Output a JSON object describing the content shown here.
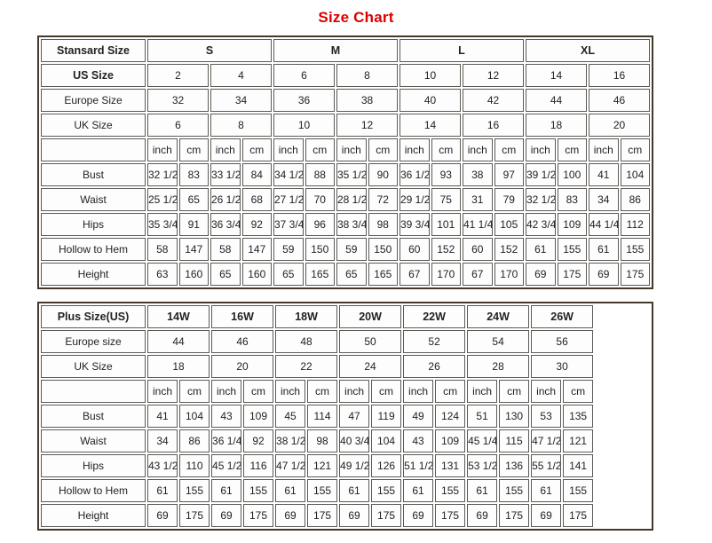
{
  "page_title": "Size Chart",
  "colors": {
    "title_red": "#dd0000",
    "outer_border": "#44382a",
    "grid_line": "#5d5a55",
    "text": "#222222"
  },
  "standard_table": {
    "corner_label": "Stansard Size",
    "size_groups": [
      "S",
      "M",
      "L",
      "XL"
    ],
    "mid_rows": [
      {
        "label": "US Size",
        "bold": true,
        "values": [
          "2",
          "4",
          "6",
          "8",
          "10",
          "12",
          "14",
          "16"
        ]
      },
      {
        "label": "Europe Size",
        "bold": false,
        "values": [
          "32",
          "34",
          "36",
          "38",
          "40",
          "42",
          "44",
          "46"
        ]
      },
      {
        "label": "UK Size",
        "bold": false,
        "values": [
          "6",
          "8",
          "10",
          "12",
          "14",
          "16",
          "18",
          "20"
        ]
      }
    ],
    "unit_labels": [
      "inch",
      "cm"
    ],
    "measure_rows": [
      {
        "label": "Bust",
        "values": [
          "32 1/2",
          "83",
          "33 1/2",
          "84",
          "34 1/2",
          "88",
          "35 1/2",
          "90",
          "36 1/2",
          "93",
          "38",
          "97",
          "39 1/2",
          "100",
          "41",
          "104"
        ]
      },
      {
        "label": "Waist",
        "values": [
          "25 1/2",
          "65",
          "26 1/2",
          "68",
          "27 1/2",
          "70",
          "28 1/2",
          "72",
          "29 1/2",
          "75",
          "31",
          "79",
          "32 1/2",
          "83",
          "34",
          "86"
        ]
      },
      {
        "label": "Hips",
        "values": [
          "35 3/4",
          "91",
          "36 3/4",
          "92",
          "37 3/4",
          "96",
          "38 3/4",
          "98",
          "39 3/4",
          "101",
          "41 1/4",
          "105",
          "42 3/4",
          "109",
          "44 1/4",
          "112"
        ]
      },
      {
        "label": "Hollow to Hem",
        "values": [
          "58",
          "147",
          "58",
          "147",
          "59",
          "150",
          "59",
          "150",
          "60",
          "152",
          "60",
          "152",
          "61",
          "155",
          "61",
          "155"
        ]
      },
      {
        "label": "Height",
        "values": [
          "63",
          "160",
          "65",
          "160",
          "65",
          "165",
          "65",
          "165",
          "67",
          "170",
          "67",
          "170",
          "69",
          "175",
          "69",
          "175"
        ]
      }
    ]
  },
  "plus_table": {
    "corner_label": "Plus Size(US)",
    "size_groups": [
      "14W",
      "16W",
      "18W",
      "20W",
      "22W",
      "24W",
      "26W"
    ],
    "mid_rows": [
      {
        "label": "Europe size",
        "bold": false,
        "values": [
          "44",
          "46",
          "48",
          "50",
          "52",
          "54",
          "56"
        ]
      },
      {
        "label": "UK Size",
        "bold": false,
        "values": [
          "18",
          "20",
          "22",
          "24",
          "26",
          "28",
          "30"
        ]
      }
    ],
    "unit_labels": [
      "inch",
      "cm"
    ],
    "measure_rows": [
      {
        "label": "Bust",
        "values": [
          "41",
          "104",
          "43",
          "109",
          "45",
          "114",
          "47",
          "119",
          "49",
          "124",
          "51",
          "130",
          "53",
          "135"
        ]
      },
      {
        "label": "Waist",
        "values": [
          "34",
          "86",
          "36 1/4",
          "92",
          "38 1/2",
          "98",
          "40 3/4",
          "104",
          "43",
          "109",
          "45 1/4",
          "115",
          "47 1/2",
          "121"
        ]
      },
      {
        "label": "Hips",
        "values": [
          "43 1/2",
          "110",
          "45 1/2",
          "116",
          "47 1/2",
          "121",
          "49 1/2",
          "126",
          "51 1/2",
          "131",
          "53 1/2",
          "136",
          "55 1/2",
          "141"
        ]
      },
      {
        "label": "Hollow to Hem",
        "values": [
          "61",
          "155",
          "61",
          "155",
          "61",
          "155",
          "61",
          "155",
          "61",
          "155",
          "61",
          "155",
          "61",
          "155"
        ]
      },
      {
        "label": "Height",
        "values": [
          "69",
          "175",
          "69",
          "175",
          "69",
          "175",
          "69",
          "175",
          "69",
          "175",
          "69",
          "175",
          "69",
          "175"
        ]
      }
    ]
  }
}
